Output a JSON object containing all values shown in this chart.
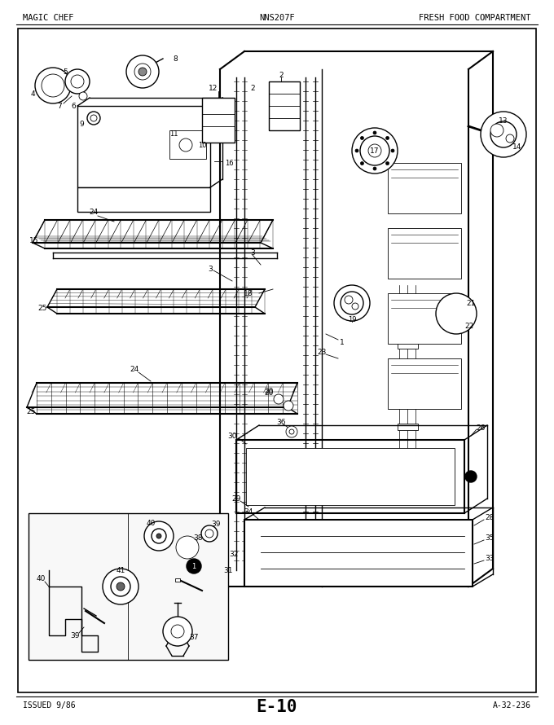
{
  "title_left": "MAGIC CHEF",
  "title_center": "NNS207F",
  "title_right": "FRESH FOOD COMPARTMENT",
  "footer_left": "ISSUED 9/86",
  "footer_center": "E-10",
  "footer_right": "A-32-236",
  "bg_color": "#ffffff",
  "page_bg": "#e8e8e8",
  "border_color": "#000000",
  "text_color": "#000000",
  "lw_thick": 1.5,
  "lw_med": 1.0,
  "lw_thin": 0.6,
  "lw_grid": 0.4
}
